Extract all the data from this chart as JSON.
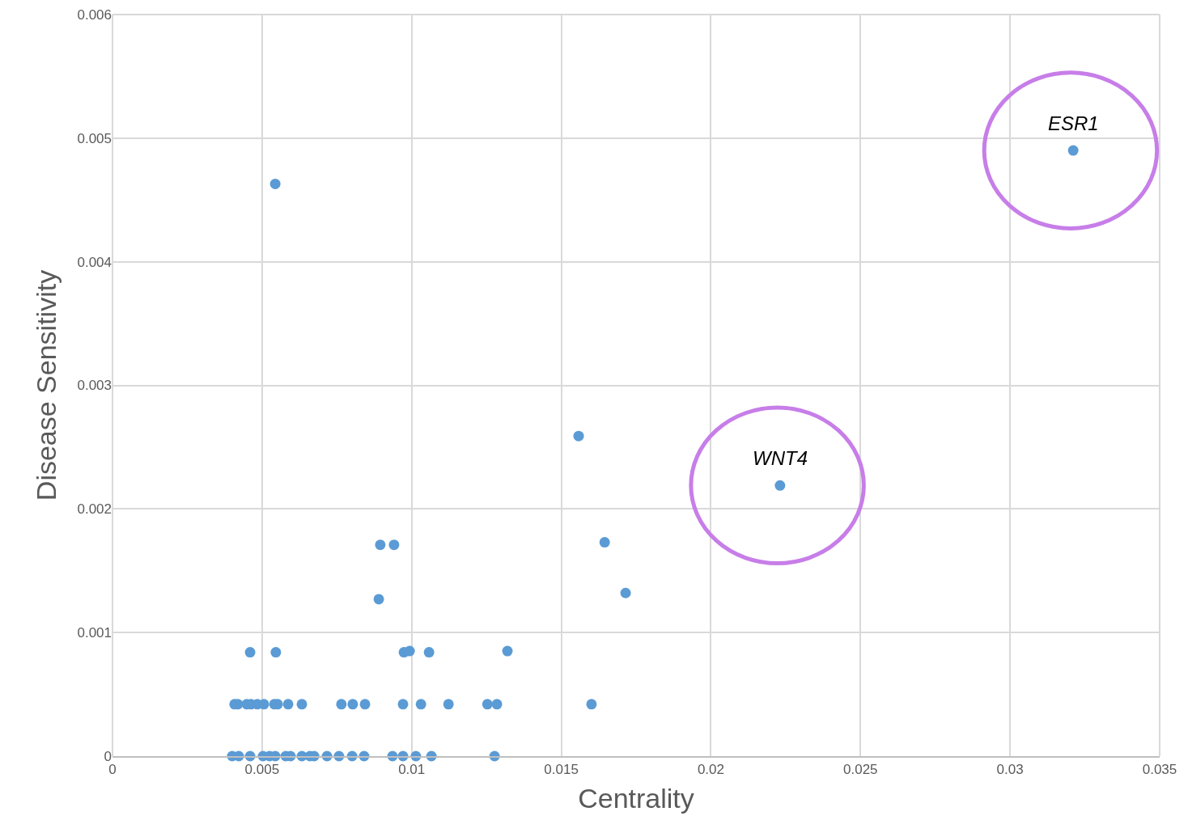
{
  "chart_data": {
    "type": "scatter",
    "xlabel": "Centrality",
    "ylabel": "Disease Sensitivity",
    "series": [
      {
        "color": "#5b9bd5",
        "x": [
          0.004,
          0.00422,
          0.0046,
          0.00503,
          0.00525,
          0.00544,
          0.00579,
          0.00595,
          0.00633,
          0.0066,
          0.00674,
          0.00717,
          0.00757,
          0.00801,
          0.00841,
          0.00936,
          0.00971,
          0.01014,
          0.01066,
          0.01277,
          0.00408,
          0.00419,
          0.00449,
          0.00463,
          0.00484,
          0.00506,
          0.00541,
          0.00552,
          0.00587,
          0.00633,
          0.00765,
          0.00803,
          0.00844,
          0.00971,
          0.01031,
          0.01123,
          0.01253,
          0.01285,
          0.01601,
          0.0046,
          0.00546,
          0.00974,
          0.00993,
          0.01058,
          0.0132,
          0.00544,
          0.00895,
          0.00941,
          0.0089,
          0.01558,
          0.01645,
          0.01715,
          0.02231,
          0.03211
        ],
        "values": [
          0,
          0,
          0,
          0,
          0,
          0,
          0,
          0,
          0,
          0,
          0,
          0,
          0,
          0,
          0,
          0,
          0,
          0,
          0,
          0,
          0.00042,
          0.00042,
          0.00042,
          0.00042,
          0.00042,
          0.00042,
          0.00042,
          0.00042,
          0.00042,
          0.00042,
          0.00042,
          0.00042,
          0.00042,
          0.00042,
          0.00042,
          0.00042,
          0.00042,
          0.00042,
          0.00042,
          0.00084,
          0.00084,
          0.00084,
          0.00085,
          0.00084,
          0.00085,
          0.00463,
          0.00171,
          0.00171,
          0.00127,
          0.00259,
          0.00173,
          0.00132,
          0.00219,
          0.0049
        ]
      }
    ],
    "annotations": [
      {
        "text": "ESR1",
        "x": 0.03211,
        "y": 0.0049
      },
      {
        "text": "WNT4",
        "x": 0.02231,
        "y": 0.00219
      }
    ],
    "xlim": [
      0,
      0.035
    ],
    "xticks": [
      0,
      0.005,
      0.01,
      0.015,
      0.02,
      0.025,
      0.03,
      0.035
    ],
    "ylim": [
      0,
      0.006
    ],
    "yticks": [
      0,
      0.001,
      0.002,
      0.003,
      0.004,
      0.005,
      0.006
    ],
    "grid": true,
    "marker": "circle"
  }
}
